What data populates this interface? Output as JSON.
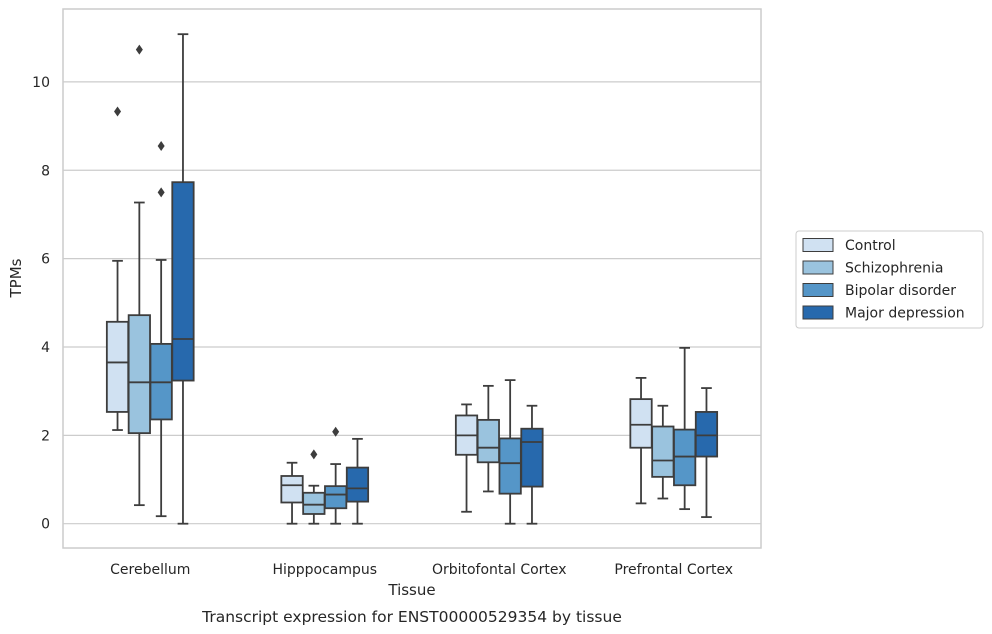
{
  "chart_data": {
    "type": "boxplot",
    "caption": "Transcript expression for ENST00000529354 by tissue",
    "xlabel": "Tissue",
    "ylabel": "TPMs",
    "ylim": [
      -0.55,
      11.65
    ],
    "yticks": [
      0,
      2,
      4,
      6,
      8,
      10
    ],
    "grid": "horizontal",
    "legend_position": "right",
    "categories": [
      "Cerebellum",
      "Hipppocampus",
      "Orbitofontal Cortex",
      "Prefrontal Cortex"
    ],
    "series": [
      {
        "name": "Control",
        "color": "#d0e1f2",
        "boxes": [
          {
            "whislo": 2.12,
            "q1": 2.53,
            "med": 3.65,
            "q3": 4.57,
            "whishi": 5.95,
            "fliers": [
              9.33
            ]
          },
          {
            "whislo": 0.0,
            "q1": 0.48,
            "med": 0.87,
            "q3": 1.08,
            "whishi": 1.38,
            "fliers": []
          },
          {
            "whislo": 0.27,
            "q1": 1.56,
            "med": 2.0,
            "q3": 2.45,
            "whishi": 2.7,
            "fliers": []
          },
          {
            "whislo": 0.46,
            "q1": 1.72,
            "med": 2.24,
            "q3": 2.82,
            "whishi": 3.3,
            "fliers": []
          }
        ]
      },
      {
        "name": "Schizophrenia",
        "color": "#9ac3de",
        "boxes": [
          {
            "whislo": 0.42,
            "q1": 2.05,
            "med": 3.2,
            "q3": 4.72,
            "whishi": 7.27,
            "fliers": [
              10.73
            ]
          },
          {
            "whislo": 0.0,
            "q1": 0.22,
            "med": 0.43,
            "q3": 0.7,
            "whishi": 0.86,
            "fliers": [
              1.57
            ]
          },
          {
            "whislo": 0.73,
            "q1": 1.39,
            "med": 1.72,
            "q3": 2.35,
            "whishi": 3.12,
            "fliers": []
          },
          {
            "whislo": 0.57,
            "q1": 1.06,
            "med": 1.43,
            "q3": 2.2,
            "whishi": 2.67,
            "fliers": []
          }
        ]
      },
      {
        "name": "Bipolar disorder",
        "color": "#5596c8",
        "boxes": [
          {
            "whislo": 0.17,
            "q1": 2.36,
            "med": 3.2,
            "q3": 4.07,
            "whishi": 5.97,
            "fliers": [
              7.5,
              8.55
            ]
          },
          {
            "whislo": 0.0,
            "q1": 0.35,
            "med": 0.66,
            "q3": 0.85,
            "whishi": 1.35,
            "fliers": [
              2.08
            ]
          },
          {
            "whislo": 0.0,
            "q1": 0.68,
            "med": 1.37,
            "q3": 1.93,
            "whishi": 3.25,
            "fliers": []
          },
          {
            "whislo": 0.33,
            "q1": 0.87,
            "med": 1.52,
            "q3": 2.13,
            "whishi": 3.98,
            "fliers": []
          }
        ]
      },
      {
        "name": "Major depression",
        "color": "#2769ad",
        "boxes": [
          {
            "whislo": 0.0,
            "q1": 3.24,
            "med": 4.18,
            "q3": 7.73,
            "whishi": 11.08,
            "fliers": []
          },
          {
            "whislo": 0.0,
            "q1": 0.5,
            "med": 0.8,
            "q3": 1.27,
            "whishi": 1.92,
            "fliers": []
          },
          {
            "whislo": 0.0,
            "q1": 0.84,
            "med": 1.85,
            "q3": 2.15,
            "whishi": 2.67,
            "fliers": []
          },
          {
            "whislo": 0.15,
            "q1": 1.52,
            "med": 2.0,
            "q3": 2.53,
            "whishi": 3.07,
            "fliers": []
          }
        ]
      }
    ]
  }
}
